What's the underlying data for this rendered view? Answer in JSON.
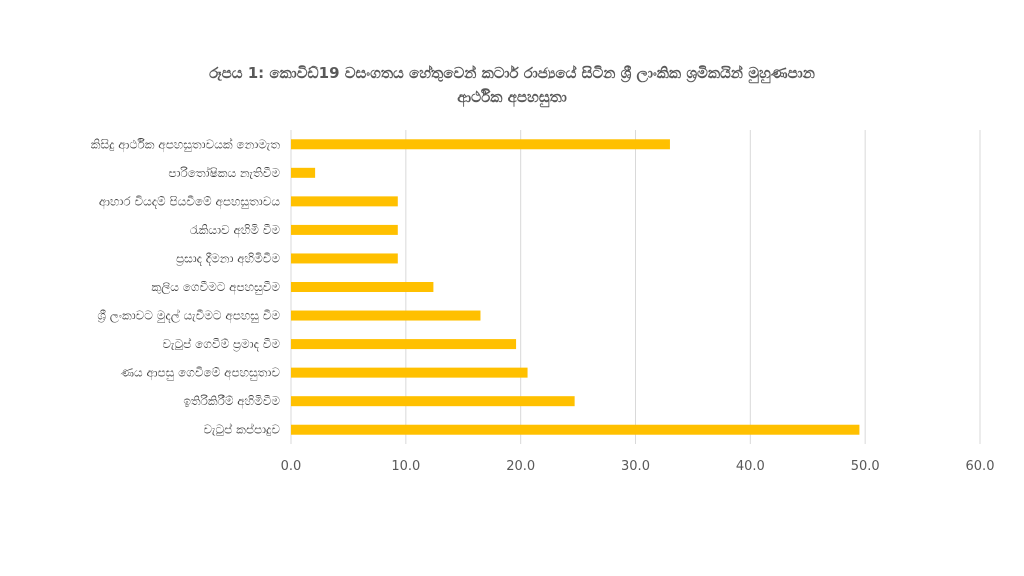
{
  "chart_data": {
    "type": "bar",
    "orientation": "horizontal",
    "title_lines": [
      "රූපය 1: කොවිඩ්19 වසංගතය හේතුවෙන් කටාර් රාජ්‍යයේ සිටින ශ්‍රී ලාංකික ශ්‍රමිකයින් මුහුණපාන",
      "ආර්ථික අපහසුතා"
    ],
    "categories": [
      "කිසිදු ආර්ථික අපහසුතාවයක් නොමැත",
      "පාරිතෝෂිකය නැතිවීම",
      "ආහාර වියදම් පියවීමේ අපහසුතාවය",
      "රැකියාව අහිමි වීම",
      "ප්‍රසාද දීමනා අහිමිවීම",
      "කුලිය ගෙවීමට අපහසුවීම",
      "ශ්‍රී ලංකාවට මුදල් යැවීමට අපහසු වීම",
      "වැටුප් ගෙවීම් ප්‍රමාද වීම",
      "ණය ආපසු ගෙවීමේ අපහසුතාව",
      "ඉතිරිකිරීම් අහිමිවීම",
      "වැටුප් කප්පාදුව"
    ],
    "values": [
      33.0,
      2.1,
      9.3,
      9.3,
      9.3,
      12.4,
      16.5,
      19.6,
      20.6,
      24.7,
      49.5
    ],
    "xlim": [
      0,
      60
    ],
    "xticks": [
      0,
      10,
      20,
      30,
      40,
      50,
      60
    ],
    "xtick_labels": [
      "0.0",
      "10.0",
      "20.0",
      "30.0",
      "40.0",
      "50.0",
      "60.0"
    ],
    "grid": true,
    "legend": "none",
    "bar_color": "#FFC000",
    "grid_color": "#D9D9D9"
  }
}
